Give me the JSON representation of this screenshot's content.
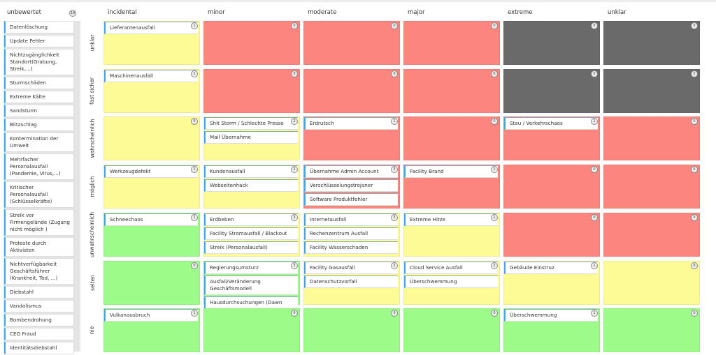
{
  "sidebar": {
    "title": "unbewertet",
    "count": 18,
    "items": [
      "Datenlöschung",
      "Update Fehler",
      "Nichtzugänglichkeit Standort(Grabung, Streik,...)",
      "Sturmschäden",
      "Extreme Kälte",
      "Sandsturm",
      "Blitzschlag",
      "Kontermination der Umwelt",
      "Mehrfacher Personalausfall (Pandemie, Virus,...)",
      "Kritischer Personalausfall (Schlüsselkräfte)",
      "Streik vor Firmengelände (Zugang nicht möglich )",
      "Proteste durch Aktivisten",
      "Nichtverfügbarkeit Geschäftsführer (Krankheit, Tod, ...)",
      "Diebstahl",
      "Vandalismus",
      "Bombendrohung",
      "CEO Fraud",
      "Identitätsdiebstahl"
    ]
  },
  "matrix": {
    "columns": [
      "incidental",
      "minor",
      "moderate",
      "major",
      "extreme",
      "unklar"
    ],
    "rows": [
      {
        "label": "unklar",
        "cells": [
          {
            "color": "#fdfb96",
            "count": 1,
            "cards": [
              "Lieferantenausfall"
            ]
          },
          {
            "color": "#fd8580",
            "count": 0,
            "cards": []
          },
          {
            "color": "#fd8580",
            "count": 0,
            "cards": []
          },
          {
            "color": "#fd8580",
            "count": 0,
            "cards": []
          },
          {
            "color": "#6a6a6a",
            "count": 0,
            "cards": []
          },
          {
            "color": "#6a6a6a",
            "count": 0,
            "cards": []
          }
        ]
      },
      {
        "label": "fast sicher",
        "cells": [
          {
            "color": "#fdfb96",
            "count": 1,
            "cards": [
              "Maschinenausfall"
            ]
          },
          {
            "color": "#fd8580",
            "count": 0,
            "cards": []
          },
          {
            "color": "#fd8580",
            "count": 0,
            "cards": []
          },
          {
            "color": "#fd8580",
            "count": 0,
            "cards": []
          },
          {
            "color": "#6a6a6a",
            "count": 0,
            "cards": []
          },
          {
            "color": "#6a6a6a",
            "count": 0,
            "cards": []
          }
        ]
      },
      {
        "label": "wahrscheinlich",
        "cells": [
          {
            "color": "#fdfb96",
            "count": 0,
            "cards": []
          },
          {
            "color": "#fdfb96",
            "count": 2,
            "cards": [
              "Shit Storm / Schlechte Presse",
              "Mail Übernahme"
            ]
          },
          {
            "color": "#fd8580",
            "count": 1,
            "cards": [
              "Erdrutsch"
            ]
          },
          {
            "color": "#fd8580",
            "count": 0,
            "cards": []
          },
          {
            "color": "#fd8580",
            "count": 1,
            "cards": [
              "Stau / Verkehrschaos"
            ]
          },
          {
            "color": "#fd8580",
            "count": 0,
            "cards": []
          }
        ]
      },
      {
        "label": "möglich",
        "cells": [
          {
            "color": "#fdfb96",
            "count": 1,
            "cards": [
              "Werkzeugdefekt"
            ]
          },
          {
            "color": "#fdfb96",
            "count": 2,
            "cards": [
              "Kundenausfall",
              "Webseitenhack"
            ]
          },
          {
            "color": "#fd8580",
            "count": 3,
            "cards": [
              "Übernahme Admin Account",
              "Verschlüsselungstrojaner",
              "Software Produktfehler"
            ]
          },
          {
            "color": "#fd8580",
            "count": 1,
            "cards": [
              "Facility Brand"
            ]
          },
          {
            "color": "#fd8580",
            "count": 0,
            "cards": []
          },
          {
            "color": "#fd8580",
            "count": 0,
            "cards": []
          }
        ]
      },
      {
        "label": "unwahrscheinlich",
        "cells": [
          {
            "color": "#9dfb8a",
            "count": 1,
            "cards": [
              "Schneechaos"
            ]
          },
          {
            "color": "#fdfb96",
            "count": 3,
            "cards": [
              "Erdbeben",
              "Facility Stromausfall / Blackout",
              "Streik (Personalausfall)"
            ]
          },
          {
            "color": "#fdfb96",
            "count": 3,
            "cards": [
              "Internetausfall",
              "Rechenzentrum Ausfall",
              "Facility Wasserschaden"
            ]
          },
          {
            "color": "#fdfb96",
            "count": 1,
            "cards": [
              "Extreme Hitze"
            ]
          },
          {
            "color": "#fd8580",
            "count": 0,
            "cards": []
          },
          {
            "color": "#fd8580",
            "count": 0,
            "cards": []
          }
        ]
      },
      {
        "label": "selten",
        "cells": [
          {
            "color": "#9dfb8a",
            "count": 0,
            "cards": []
          },
          {
            "color": "#9dfb8a",
            "count": 3,
            "cards": [
              "Regierungsumsturz",
              "Ausfall/Veränderung Geschäftsmodell",
              "Hausdurchsuchungen (Dawn"
            ]
          },
          {
            "color": "#fdfb96",
            "count": 2,
            "cards": [
              "Facility Gasausfall",
              "Datenschutzvorfall"
            ]
          },
          {
            "color": "#fdfb96",
            "count": 2,
            "cards": [
              "Cloud Service Ausfall",
              "Überschwemmung"
            ]
          },
          {
            "color": "#fdfb96",
            "count": 1,
            "cards": [
              "Gebäude Einstruz"
            ]
          },
          {
            "color": "#fdfb96",
            "count": 0,
            "cards": []
          }
        ]
      },
      {
        "label": "nie",
        "cells": [
          {
            "color": "#9dfb8a",
            "count": 1,
            "cards": [
              "Vulkanausbruch"
            ]
          },
          {
            "color": "#9dfb8a",
            "count": 0,
            "cards": []
          },
          {
            "color": "#9dfb8a",
            "count": 0,
            "cards": []
          },
          {
            "color": "#9dfb8a",
            "count": 0,
            "cards": []
          },
          {
            "color": "#9dfb8a",
            "count": 1,
            "cards": [
              "Überschwemmung"
            ]
          },
          {
            "color": "#9dfb8a",
            "count": 0,
            "cards": []
          }
        ]
      }
    ]
  }
}
